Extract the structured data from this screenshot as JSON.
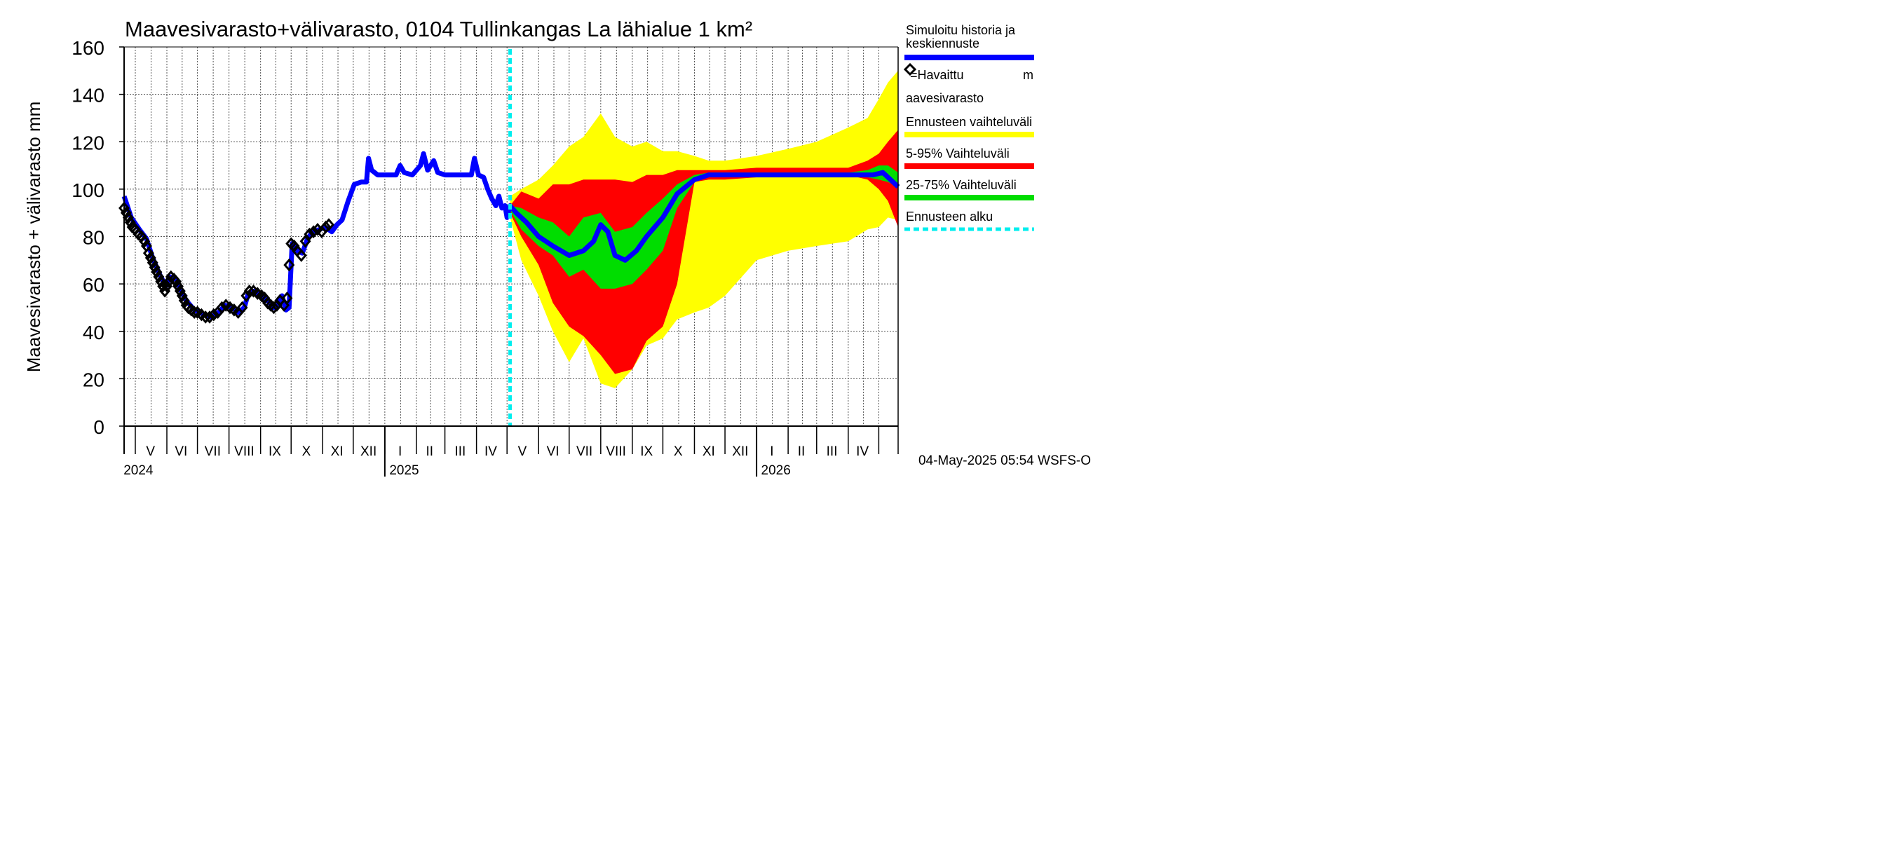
{
  "chart_data": {
    "type": "area",
    "title": "Maavesivarasto+välivarasto,  0104 Tullinkangas La lähialue 1 km²",
    "ylabel": "Maavesivarasto + välivarasto mm",
    "ylim": [
      0,
      160
    ],
    "yticks": [
      0,
      20,
      40,
      60,
      80,
      100,
      120,
      140,
      160
    ],
    "xlim": [
      "2024-04-20",
      "2026-05-20"
    ],
    "month_labels": [
      {
        "label": "V",
        "date": "2024-05-16"
      },
      {
        "label": "VI",
        "date": "2024-06-15"
      },
      {
        "label": "VII",
        "date": "2024-07-16"
      },
      {
        "label": "VIII",
        "date": "2024-08-16"
      },
      {
        "label": "IX",
        "date": "2024-09-15"
      },
      {
        "label": "X",
        "date": "2024-10-16"
      },
      {
        "label": "XI",
        "date": "2024-11-15"
      },
      {
        "label": "XII",
        "date": "2024-12-16"
      },
      {
        "label": "I",
        "date": "2025-01-16"
      },
      {
        "label": "II",
        "date": "2025-02-14"
      },
      {
        "label": "III",
        "date": "2025-03-16"
      },
      {
        "label": "IV",
        "date": "2025-04-15"
      },
      {
        "label": "V",
        "date": "2025-05-16"
      },
      {
        "label": "VI",
        "date": "2025-06-15"
      },
      {
        "label": "VII",
        "date": "2025-07-16"
      },
      {
        "label": "VIII",
        "date": "2025-08-16"
      },
      {
        "label": "IX",
        "date": "2025-09-15"
      },
      {
        "label": "X",
        "date": "2025-10-16"
      },
      {
        "label": "XI",
        "date": "2025-11-15"
      },
      {
        "label": "XII",
        "date": "2025-12-16"
      },
      {
        "label": "I",
        "date": "2026-01-16"
      },
      {
        "label": "II",
        "date": "2026-02-14"
      },
      {
        "label": "III",
        "date": "2026-03-16"
      },
      {
        "label": "IV",
        "date": "2026-04-15"
      }
    ],
    "month_starts": [
      "2024-05-01",
      "2024-06-01",
      "2024-07-01",
      "2024-08-01",
      "2024-09-01",
      "2024-10-01",
      "2024-11-01",
      "2024-12-01",
      "2025-01-01",
      "2025-02-01",
      "2025-03-01",
      "2025-04-01",
      "2025-05-01",
      "2025-06-01",
      "2025-07-01",
      "2025-08-01",
      "2025-09-01",
      "2025-10-01",
      "2025-11-01",
      "2025-12-01",
      "2026-01-01",
      "2026-02-01",
      "2026-03-01",
      "2026-04-01",
      "2026-05-01"
    ],
    "year_labels": [
      {
        "label": "2024",
        "date": "2024-05-04"
      },
      {
        "label": "2025",
        "date": "2025-01-20"
      },
      {
        "label": "2026",
        "date": "2026-01-20"
      }
    ],
    "year_starts": [
      "2025-01-01",
      "2026-01-01"
    ],
    "forecast_start": "2025-05-04",
    "series": [
      {
        "name": "Simuloitu historia ja keskiennuste",
        "color": "#0000ff",
        "points": [
          [
            "2024-04-20",
            97
          ],
          [
            "2024-04-27",
            88
          ],
          [
            "2024-05-05",
            83
          ],
          [
            "2024-05-12",
            79
          ],
          [
            "2024-05-18",
            71
          ],
          [
            "2024-05-25",
            64
          ],
          [
            "2024-05-31",
            59
          ],
          [
            "2024-06-04",
            63
          ],
          [
            "2024-06-10",
            62
          ],
          [
            "2024-06-15",
            57
          ],
          [
            "2024-06-20",
            53
          ],
          [
            "2024-06-28",
            49
          ],
          [
            "2024-07-08",
            47
          ],
          [
            "2024-07-14",
            46
          ],
          [
            "2024-07-22",
            48
          ],
          [
            "2024-07-28",
            51
          ],
          [
            "2024-08-04",
            50
          ],
          [
            "2024-08-10",
            48
          ],
          [
            "2024-08-16",
            50
          ],
          [
            "2024-08-20",
            56
          ],
          [
            "2024-08-26",
            57
          ],
          [
            "2024-09-02",
            55
          ],
          [
            "2024-09-08",
            53
          ],
          [
            "2024-09-14",
            50
          ],
          [
            "2024-09-18",
            51
          ],
          [
            "2024-09-22",
            55
          ],
          [
            "2024-09-26",
            49
          ],
          [
            "2024-09-29",
            50
          ],
          [
            "2024-10-02",
            77
          ],
          [
            "2024-10-07",
            74
          ],
          [
            "2024-10-12",
            73
          ],
          [
            "2024-10-17",
            79
          ],
          [
            "2024-10-22",
            82
          ],
          [
            "2024-10-29",
            83
          ],
          [
            "2024-11-03",
            84
          ],
          [
            "2024-11-10",
            82
          ],
          [
            "2024-11-15",
            85
          ],
          [
            "2024-11-20",
            87
          ],
          [
            "2024-11-26",
            95
          ],
          [
            "2024-12-02",
            102
          ],
          [
            "2024-12-09",
            103
          ],
          [
            "2024-12-14",
            103
          ],
          [
            "2024-12-16",
            113
          ],
          [
            "2024-12-19",
            108
          ],
          [
            "2024-12-25",
            106
          ],
          [
            "2025-01-05",
            106
          ],
          [
            "2025-01-12",
            106
          ],
          [
            "2025-01-16",
            110
          ],
          [
            "2025-01-20",
            107
          ],
          [
            "2025-01-28",
            106
          ],
          [
            "2025-02-05",
            110
          ],
          [
            "2025-02-08",
            115
          ],
          [
            "2025-02-12",
            108
          ],
          [
            "2025-02-18",
            112
          ],
          [
            "2025-02-22",
            107
          ],
          [
            "2025-03-01",
            106
          ],
          [
            "2025-03-10",
            106
          ],
          [
            "2025-03-20",
            106
          ],
          [
            "2025-03-27",
            106
          ],
          [
            "2025-03-30",
            113
          ],
          [
            "2025-04-03",
            106
          ],
          [
            "2025-04-08",
            105
          ],
          [
            "2025-04-12",
            100
          ],
          [
            "2025-04-16",
            96
          ],
          [
            "2025-04-20",
            93
          ],
          [
            "2025-04-23",
            97
          ],
          [
            "2025-04-26",
            92
          ],
          [
            "2025-04-29",
            93
          ],
          [
            "2025-05-01",
            88
          ],
          [
            "2025-05-04",
            93
          ],
          [
            "2025-05-10",
            90
          ],
          [
            "2025-05-20",
            86
          ],
          [
            "2025-06-01",
            80
          ],
          [
            "2025-06-15",
            76
          ],
          [
            "2025-07-01",
            72
          ],
          [
            "2025-07-15",
            74
          ],
          [
            "2025-07-25",
            78
          ],
          [
            "2025-08-01",
            85
          ],
          [
            "2025-08-08",
            82
          ],
          [
            "2025-08-15",
            72
          ],
          [
            "2025-08-25",
            70
          ],
          [
            "2025-09-05",
            74
          ],
          [
            "2025-09-15",
            80
          ],
          [
            "2025-10-01",
            88
          ],
          [
            "2025-10-15",
            98
          ],
          [
            "2025-11-01",
            104
          ],
          [
            "2025-11-15",
            106
          ],
          [
            "2025-12-01",
            106
          ],
          [
            "2026-01-01",
            106
          ],
          [
            "2026-02-01",
            106
          ],
          [
            "2026-03-01",
            106
          ],
          [
            "2026-04-01",
            106
          ],
          [
            "2026-04-25",
            106
          ],
          [
            "2026-05-05",
            107
          ],
          [
            "2026-05-15",
            103
          ],
          [
            "2026-05-20",
            101
          ]
        ]
      },
      {
        "name": "=Havaittu maavesivarasto",
        "marker": "diamond",
        "points": [
          [
            "2024-04-20",
            92
          ],
          [
            "2024-04-22",
            90
          ],
          [
            "2024-04-24",
            88
          ],
          [
            "2024-04-26",
            86
          ],
          [
            "2024-04-28",
            84
          ],
          [
            "2024-05-01",
            83
          ],
          [
            "2024-05-04",
            81
          ],
          [
            "2024-05-07",
            80
          ],
          [
            "2024-05-10",
            78
          ],
          [
            "2024-05-12",
            76
          ],
          [
            "2024-05-14",
            73
          ],
          [
            "2024-05-16",
            71
          ],
          [
            "2024-05-18",
            69
          ],
          [
            "2024-05-20",
            67
          ],
          [
            "2024-05-22",
            65
          ],
          [
            "2024-05-24",
            63
          ],
          [
            "2024-05-26",
            61
          ],
          [
            "2024-05-28",
            59
          ],
          [
            "2024-05-30",
            57
          ],
          [
            "2024-06-01",
            59
          ],
          [
            "2024-06-03",
            61
          ],
          [
            "2024-06-05",
            63
          ],
          [
            "2024-06-08",
            62
          ],
          [
            "2024-06-10",
            61
          ],
          [
            "2024-06-12",
            59
          ],
          [
            "2024-06-14",
            57
          ],
          [
            "2024-06-16",
            55
          ],
          [
            "2024-06-18",
            53
          ],
          [
            "2024-06-20",
            51
          ],
          [
            "2024-06-22",
            50
          ],
          [
            "2024-06-25",
            49
          ],
          [
            "2024-06-28",
            48
          ],
          [
            "2024-07-01",
            48
          ],
          [
            "2024-07-05",
            47
          ],
          [
            "2024-07-09",
            46
          ],
          [
            "2024-07-13",
            46
          ],
          [
            "2024-07-17",
            47
          ],
          [
            "2024-07-21",
            48
          ],
          [
            "2024-07-25",
            50
          ],
          [
            "2024-07-29",
            51
          ],
          [
            "2024-08-02",
            50
          ],
          [
            "2024-08-06",
            49
          ],
          [
            "2024-08-10",
            48
          ],
          [
            "2024-08-14",
            50
          ],
          [
            "2024-08-18",
            55
          ],
          [
            "2024-08-21",
            57
          ],
          [
            "2024-08-25",
            57
          ],
          [
            "2024-08-29",
            56
          ],
          [
            "2024-09-02",
            55
          ],
          [
            "2024-09-05",
            54
          ],
          [
            "2024-09-08",
            52
          ],
          [
            "2024-09-11",
            51
          ],
          [
            "2024-09-14",
            50
          ],
          [
            "2024-09-17",
            51
          ],
          [
            "2024-09-20",
            53
          ],
          [
            "2024-09-24",
            51
          ],
          [
            "2024-09-27",
            54
          ],
          [
            "2024-09-29",
            68
          ],
          [
            "2024-10-01",
            77
          ],
          [
            "2024-10-04",
            76
          ],
          [
            "2024-10-07",
            74
          ],
          [
            "2024-10-11",
            72
          ],
          [
            "2024-10-15",
            78
          ],
          [
            "2024-10-19",
            81
          ],
          [
            "2024-10-23",
            82
          ],
          [
            "2024-10-27",
            83
          ],
          [
            "2024-10-31",
            82
          ],
          [
            "2024-11-04",
            84
          ],
          [
            "2024-11-07",
            85
          ]
        ]
      },
      {
        "name": "Ennusteen vaihteluväli",
        "color": "#ffff00"
      },
      {
        "name": "5-95% Vaihteluväli",
        "color": "#ff0000"
      },
      {
        "name": "25-75% Vaihteluväli",
        "color": "#00dd00"
      },
      {
        "name": "Ennusteen alku",
        "color": "#00eeee"
      }
    ],
    "bands": {
      "dates": [
        "2025-05-04",
        "2025-05-15",
        "2025-06-01",
        "2025-06-15",
        "2025-07-01",
        "2025-07-15",
        "2025-08-01",
        "2025-08-15",
        "2025-09-01",
        "2025-09-15",
        "2025-10-01",
        "2025-10-15",
        "2025-11-01",
        "2025-11-15",
        "2025-12-01",
        "2026-01-01",
        "2026-02-01",
        "2026-03-01",
        "2026-04-01",
        "2026-04-20",
        "2026-05-01",
        "2026-05-10",
        "2026-05-20"
      ],
      "full_min": [
        88,
        70,
        55,
        40,
        27,
        37,
        18,
        16,
        24,
        34,
        37,
        45,
        48,
        50,
        55,
        70,
        74,
        76,
        78,
        83,
        84,
        88,
        87
      ],
      "full_max": [
        97,
        100,
        104,
        110,
        118,
        122,
        132,
        122,
        118,
        120,
        116,
        116,
        114,
        112,
        112,
        114,
        117,
        120,
        126,
        130,
        138,
        145,
        150
      ],
      "p5": [
        90,
        80,
        68,
        52,
        42,
        38,
        30,
        22,
        24,
        36,
        42,
        60,
        103,
        104,
        104,
        105,
        105,
        106,
        106,
        104,
        100,
        95,
        84
      ],
      "p95": [
        93,
        99,
        96,
        102,
        102,
        104,
        104,
        104,
        103,
        106,
        106,
        108,
        108,
        108,
        108,
        109,
        109,
        109,
        109,
        112,
        115,
        120,
        125
      ],
      "p25": [
        91,
        83,
        76,
        72,
        63,
        66,
        58,
        58,
        60,
        66,
        74,
        92,
        103,
        105,
        105,
        106,
        106,
        106,
        106,
        105,
        104,
        103,
        101
      ],
      "p75": [
        93,
        92,
        88,
        86,
        80,
        88,
        90,
        82,
        84,
        90,
        96,
        102,
        106,
        107,
        107,
        107,
        107,
        107,
        107,
        108,
        110,
        110,
        107
      ]
    }
  },
  "legend": {
    "sim_line1": "Simuloitu historia ja",
    "sim_line2": "keskiennuste",
    "obs_line1": "=Havaittu",
    "obs_line1_suffix": "m",
    "obs_line2": "aavesivarasto",
    "full_range": "Ennusteen vaihteluväli",
    "p5_95": "5-95% Vaihteluväli",
    "p25_75": "25-75% Vaihteluväli",
    "forecast_start": "Ennusteen alku"
  },
  "footer": {
    "timestamp": "04-May-2025 05:54 WSFS-O"
  }
}
